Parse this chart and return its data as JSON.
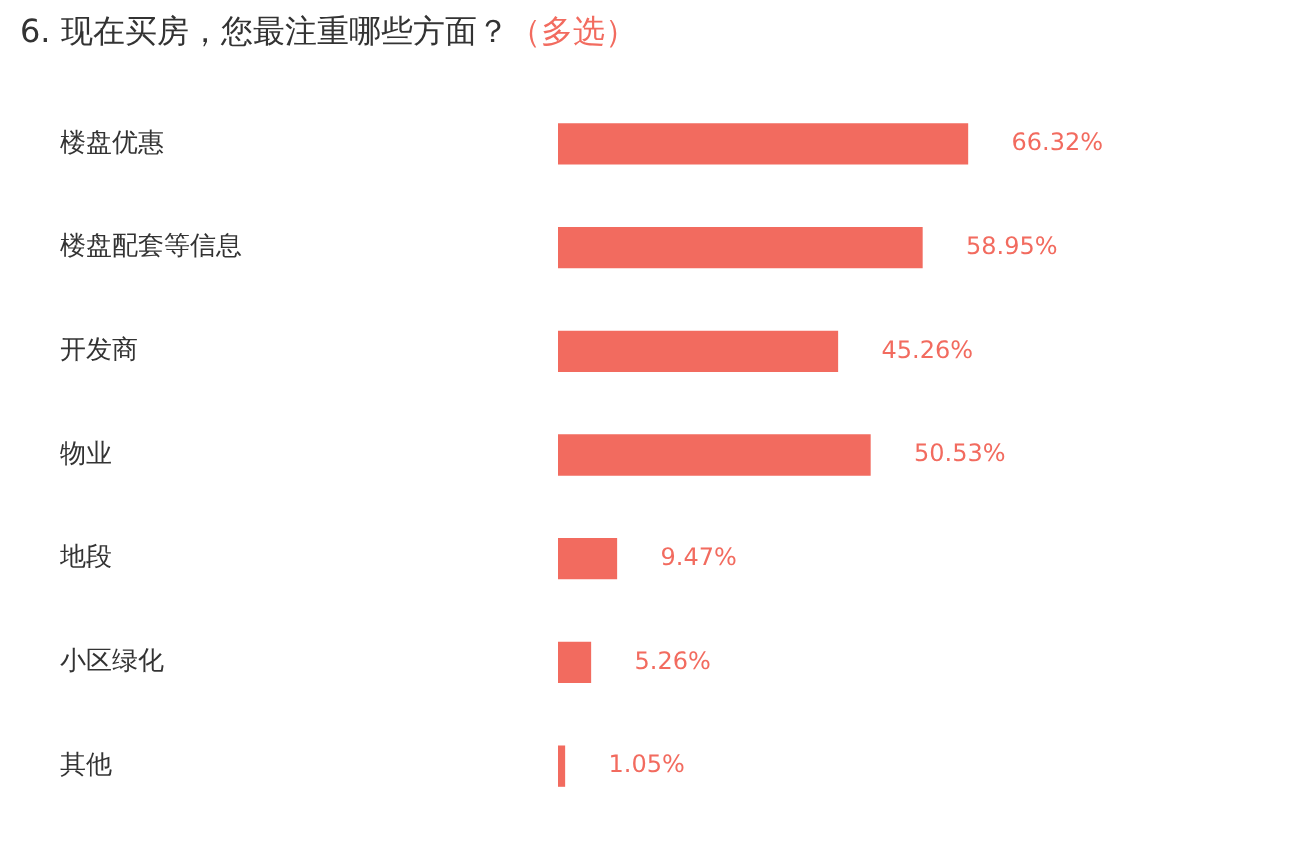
{
  "chart_data": {
    "type": "bar",
    "orientation": "horizontal",
    "title": "6. 现在买房，您最注重哪些方面？",
    "subtitle": "（多选）",
    "categories": [
      "楼盘优惠",
      "楼盘配套等信息",
      "开发商",
      "物业",
      "地段",
      "小区绿化",
      "其他"
    ],
    "values": [
      66.32,
      58.95,
      45.26,
      50.53,
      9.47,
      5.26,
      1.05
    ],
    "value_labels": [
      "66.32%",
      "58.95%",
      "45.26%",
      "50.53%",
      "9.47%",
      "5.26%",
      "1.05%"
    ],
    "color": "#f26b5f",
    "tick_labels": "y",
    "legend": false
  }
}
